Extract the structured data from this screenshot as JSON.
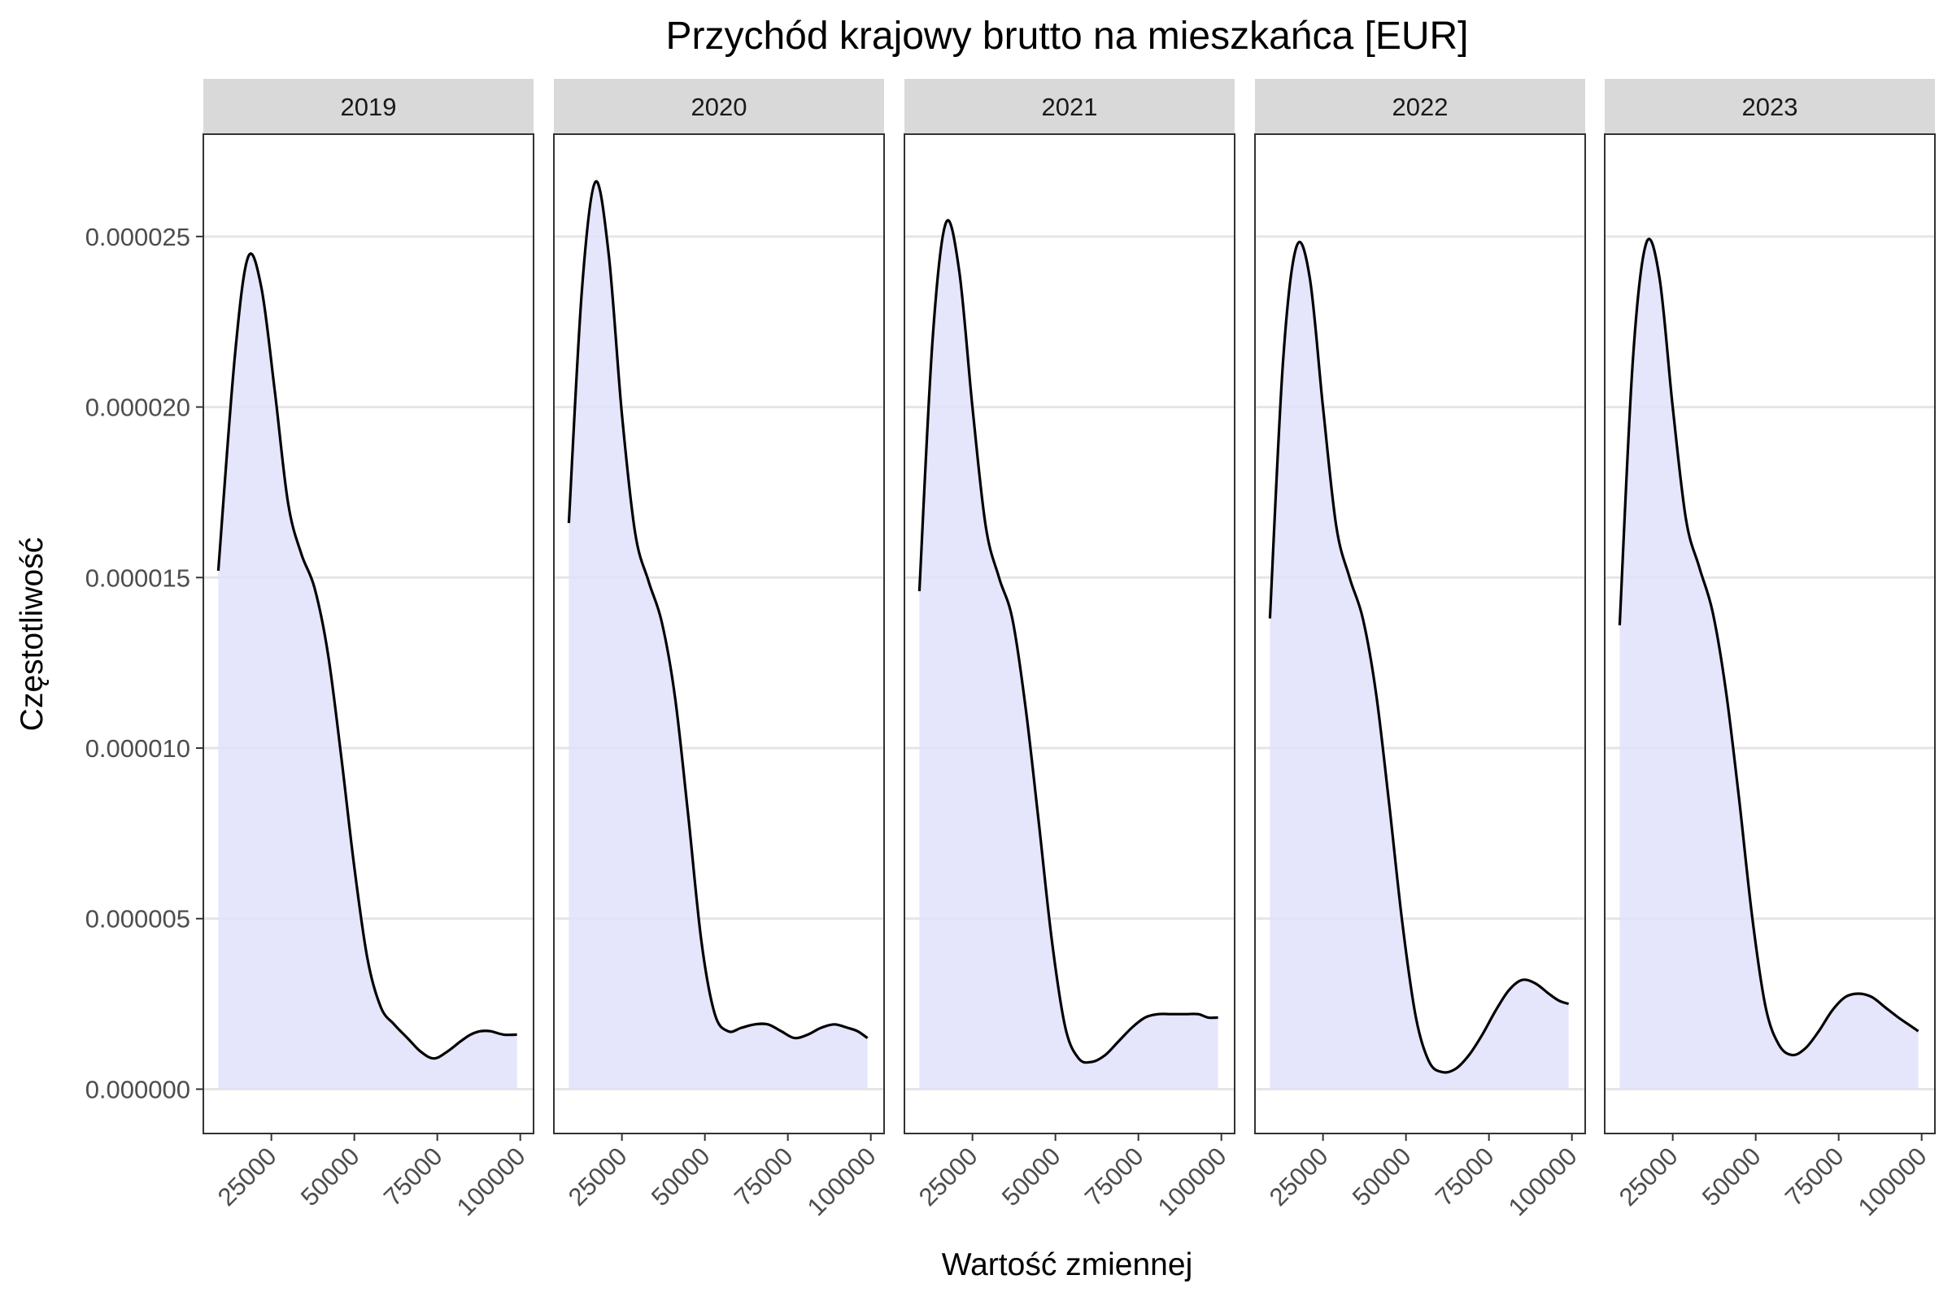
{
  "chart_data": {
    "type": "area",
    "title": "Przychód krajowy brutto na mieszkańca [EUR]",
    "xlabel": "Wartość zmiennej",
    "ylabel": "Częstotliwość",
    "xlim": [
      4500,
      104000
    ],
    "ylim": [
      -1.3e-06,
      2.8e-05
    ],
    "x_ticks": [
      25000,
      50000,
      75000,
      100000
    ],
    "x_tick_labels": [
      "25000",
      "50000",
      "75000",
      "100000"
    ],
    "y_ticks": [
      0,
      5e-06,
      1e-05,
      1.5e-05,
      2e-05,
      2.5e-05
    ],
    "y_tick_labels": [
      "0.000000",
      "0.000005",
      "0.000010",
      "0.000015",
      "0.000020",
      "0.000025"
    ],
    "grid": true,
    "fill_color": "#e1e1fb",
    "line_color": "#000000",
    "strip_color": "#d9d9d9",
    "panels": [
      {
        "name": "2019",
        "x": [
          9000,
          14000,
          18000,
          22000,
          26000,
          30000,
          34000,
          38000,
          42000,
          46000,
          50000,
          54000,
          58000,
          62000,
          66000,
          70000,
          74000,
          78000,
          82000,
          85000,
          88000,
          91000,
          95000,
          99000
        ],
        "y": [
          1.52e-05,
          2.15e-05,
          2.44e-05,
          2.35e-05,
          2.05e-05,
          1.72e-05,
          1.57e-05,
          1.47e-05,
          1.28e-05,
          9.8e-06,
          6.5e-06,
          3.8e-06,
          2.4e-06,
          1.9e-06,
          1.5e-06,
          1.1e-06,
          9e-07,
          1.1e-06,
          1.4e-06,
          1.6e-06,
          1.7e-06,
          1.7e-06,
          1.6e-06,
          1.6e-06
        ]
      },
      {
        "name": "2020",
        "x": [
          9000,
          13000,
          17000,
          21000,
          25000,
          29000,
          33000,
          37000,
          41000,
          45000,
          49000,
          53000,
          57000,
          61000,
          65000,
          69000,
          73000,
          77000,
          81000,
          85000,
          89000,
          93000,
          96000,
          99000
        ],
        "y": [
          1.66e-05,
          2.35e-05,
          2.66e-05,
          2.45e-05,
          1.98e-05,
          1.63e-05,
          1.49e-05,
          1.37e-05,
          1.15e-05,
          8e-06,
          4.3e-06,
          2.2e-06,
          1.7e-06,
          1.8e-06,
          1.9e-06,
          1.9e-06,
          1.7e-06,
          1.5e-06,
          1.6e-06,
          1.8e-06,
          1.9e-06,
          1.8e-06,
          1.7e-06,
          1.5e-06
        ]
      },
      {
        "name": "2021",
        "x": [
          9000,
          13000,
          17000,
          21000,
          25000,
          29000,
          33000,
          37000,
          41000,
          45000,
          49000,
          53000,
          57000,
          61000,
          65000,
          69000,
          73000,
          77000,
          81000,
          85000,
          89000,
          93000,
          96000,
          99000
        ],
        "y": [
          1.46e-05,
          2.2e-05,
          2.54e-05,
          2.4e-05,
          2e-05,
          1.65e-05,
          1.5e-05,
          1.38e-05,
          1.12e-05,
          7.8e-06,
          4.3e-06,
          1.8e-06,
          9e-07,
          8e-07,
          1e-06,
          1.4e-06,
          1.8e-06,
          2.1e-06,
          2.2e-06,
          2.2e-06,
          2.2e-06,
          2.2e-06,
          2.1e-06,
          2.1e-06
        ]
      },
      {
        "name": "2022",
        "x": [
          9000,
          13000,
          17000,
          21000,
          25000,
          29000,
          33000,
          37000,
          41000,
          45000,
          49000,
          53000,
          57000,
          61000,
          65000,
          69000,
          73000,
          77000,
          81000,
          85000,
          89000,
          93000,
          96000,
          99000
        ],
        "y": [
          1.38e-05,
          2.14e-05,
          2.47e-05,
          2.38e-05,
          2e-05,
          1.65e-05,
          1.5e-05,
          1.38e-05,
          1.16e-05,
          8.3e-06,
          4.8e-06,
          2.1e-06,
          8e-07,
          5e-07,
          6e-07,
          1e-06,
          1.6e-06,
          2.3e-06,
          2.9e-06,
          3.2e-06,
          3.1e-06,
          2.8e-06,
          2.6e-06,
          2.5e-06
        ]
      },
      {
        "name": "2023",
        "x": [
          9000,
          13000,
          17000,
          21000,
          25000,
          29000,
          33000,
          37000,
          41000,
          45000,
          49000,
          53000,
          57000,
          61000,
          65000,
          69000,
          73000,
          77000,
          81000,
          85000,
          89000,
          93000,
          96000,
          99000
        ],
        "y": [
          1.36e-05,
          2.14e-05,
          2.48e-05,
          2.38e-05,
          2e-05,
          1.67e-05,
          1.53e-05,
          1.4e-05,
          1.17e-05,
          8.5e-06,
          5e-06,
          2.4e-06,
          1.3e-06,
          1e-06,
          1.2e-06,
          1.7e-06,
          2.3e-06,
          2.7e-06,
          2.8e-06,
          2.7e-06,
          2.4e-06,
          2.1e-06,
          1.9e-06,
          1.7e-06
        ]
      }
    ]
  }
}
